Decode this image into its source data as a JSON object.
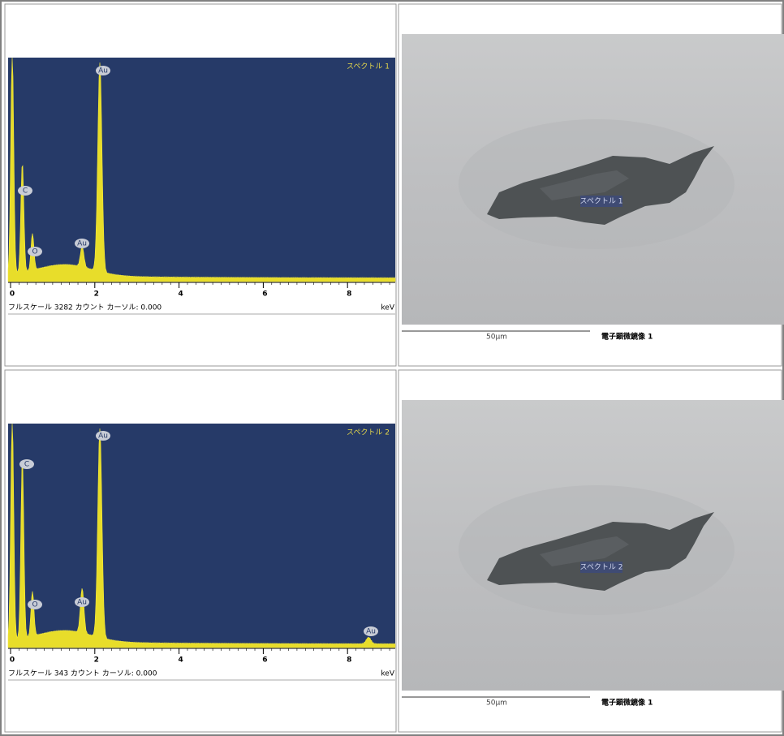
{
  "rows": [
    {
      "spectrum": {
        "title": "スペクトル 1",
        "peaks": [
          "Au",
          "C",
          "O",
          "Au"
        ],
        "axis_ticks": [
          "0",
          "2",
          "4",
          "6",
          "8"
        ],
        "status": "フルスケール 3282 カウント カーソル: 0.000",
        "unit": "keV"
      },
      "image": {
        "label": "スペクトル 1",
        "scale": "50μm",
        "caption": "電子顕微鏡像 1"
      }
    },
    {
      "spectrum": {
        "title": "スペクトル 2",
        "peaks": [
          "Au",
          "C",
          "O",
          "Au",
          "Au"
        ],
        "axis_ticks": [
          "0",
          "2",
          "4",
          "6",
          "8"
        ],
        "status": "フルスケール 343 カウント カーソル: 0.000",
        "unit": "keV"
      },
      "image": {
        "label": "スペクトル 2",
        "scale": "50μm",
        "caption": "電子顕微鏡像 1"
      }
    }
  ]
}
